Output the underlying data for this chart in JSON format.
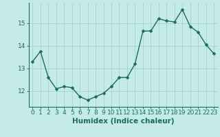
{
  "x": [
    0,
    1,
    2,
    3,
    4,
    5,
    6,
    7,
    8,
    9,
    10,
    11,
    12,
    13,
    14,
    15,
    16,
    17,
    18,
    19,
    20,
    21,
    22,
    23
  ],
  "y": [
    13.3,
    13.75,
    12.6,
    12.1,
    12.2,
    12.15,
    11.75,
    11.6,
    11.75,
    11.9,
    12.2,
    12.6,
    12.6,
    13.2,
    14.65,
    14.65,
    15.2,
    15.1,
    15.05,
    15.6,
    14.85,
    14.6,
    14.05,
    13.65
  ],
  "line_color": "#1a6b5a",
  "marker_color": "#1a6b5a",
  "bg_color": "#c5eaea",
  "grid_color": "#aad4d4",
  "xlabel": "Humidex (Indice chaleur)",
  "yticks": [
    12,
    13,
    14,
    15
  ],
  "ylim": [
    11.3,
    15.9
  ],
  "xlim": [
    -0.5,
    23.5
  ],
  "xlabel_fontsize": 7.5,
  "tick_fontsize": 6.5,
  "line_width": 1.0,
  "marker_size": 2.5
}
